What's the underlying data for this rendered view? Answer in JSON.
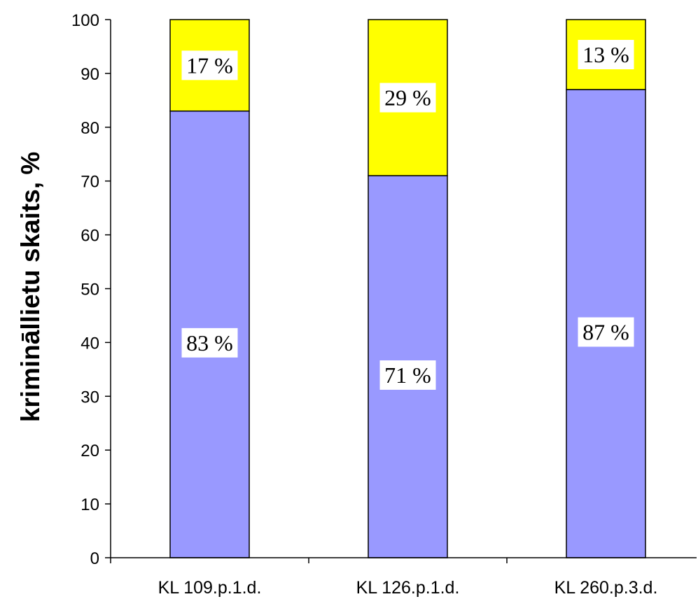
{
  "chart_data": {
    "type": "bar",
    "stacked": true,
    "categories": [
      "KL 109.p.1.d.",
      "KL 126.p.1.d.",
      "KL 260.p.3.d."
    ],
    "series": [
      {
        "values": [
          83,
          71,
          87
        ],
        "color": "#9999ff",
        "labels": [
          "83 %",
          "71 %",
          "87 %"
        ]
      },
      {
        "values": [
          17,
          29,
          13
        ],
        "color": "#ffff00",
        "labels": [
          "17 %",
          "29 %",
          "13 %"
        ]
      }
    ],
    "title": "",
    "xlabel": "",
    "ylabel": "krimināllietu skaits, %",
    "ylim": [
      0,
      100
    ],
    "yticks": [
      "0",
      "10",
      "20",
      "30",
      "40",
      "50",
      "60",
      "70",
      "80",
      "90",
      "100"
    ],
    "grid": false,
    "legend": "none"
  }
}
